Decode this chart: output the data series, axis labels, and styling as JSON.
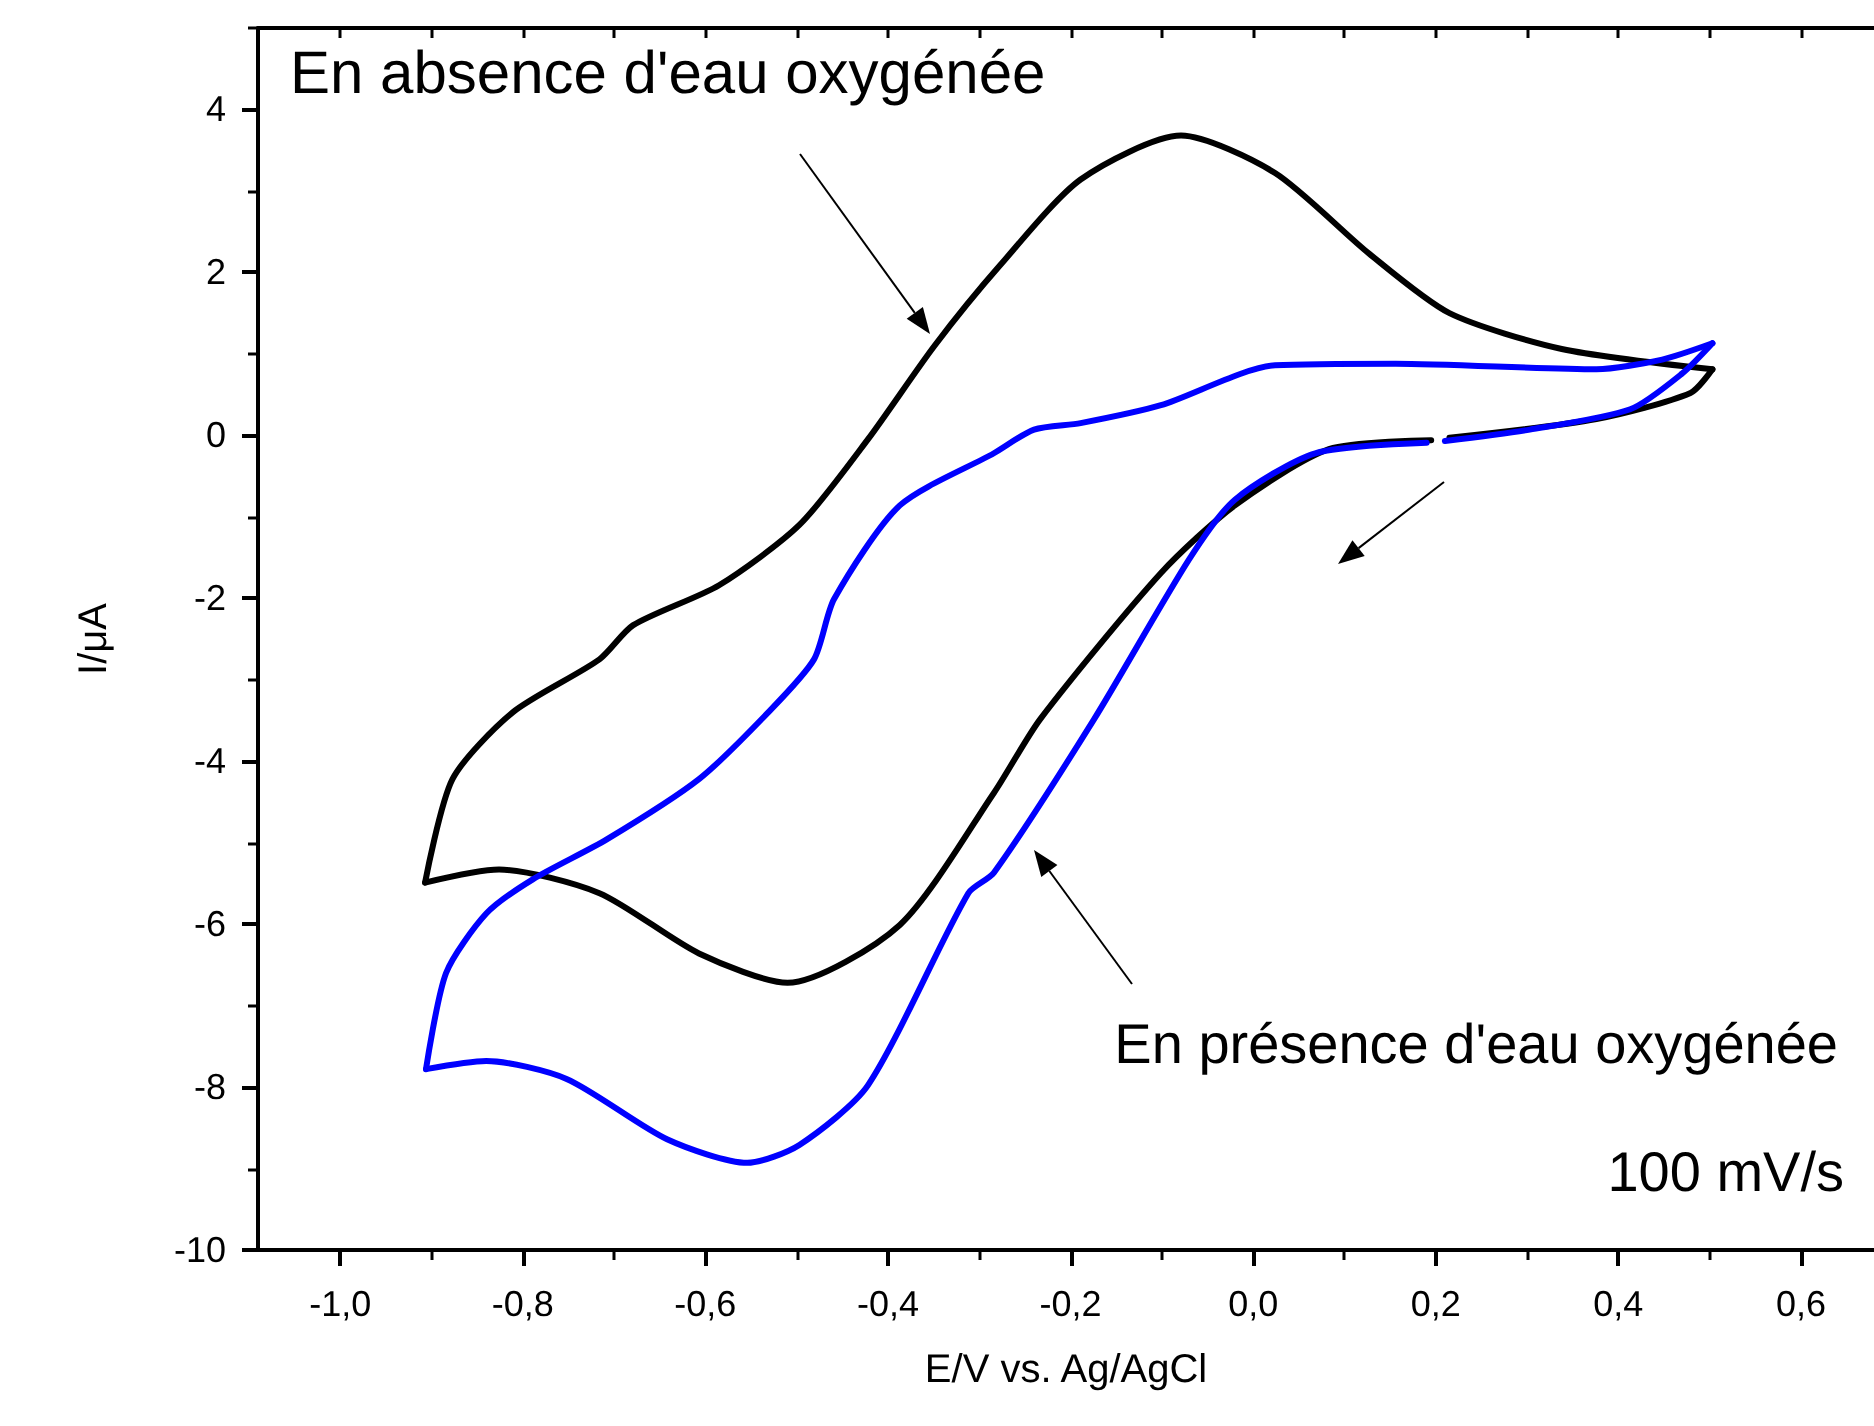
{
  "chart_data": {
    "type": "line",
    "xlabel": "E/V vs. Ag/AgCl",
    "ylabel": "I/μA",
    "xlim": [
      -1.09,
      0.68
    ],
    "ylim": [
      -10,
      5
    ],
    "xticks": [
      {
        "value": -1,
        "label": "-1,0"
      },
      {
        "value": -0.8,
        "label": "-0,8"
      },
      {
        "value": -0.6,
        "label": "-0,6"
      },
      {
        "value": -0.4,
        "label": "-0,4"
      },
      {
        "value": -0.2,
        "label": "-0,2"
      },
      {
        "value": 0,
        "label": "0,0"
      },
      {
        "value": 0.2,
        "label": "0,2"
      },
      {
        "value": 0.4,
        "label": "0,4"
      },
      {
        "value": 0.6,
        "label": "0,6"
      }
    ],
    "yticks": [
      -10,
      -8,
      -6,
      -4,
      -2,
      0,
      2,
      4
    ],
    "grid": false,
    "annotations": [
      "En absence d'eau oxygénée",
      "En présence d'eau oxygénée",
      "100 mV/s"
    ],
    "series": [
      {
        "color": "#000000",
        "x": [
          -0.907,
          -0.877,
          -0.811,
          -0.716,
          -0.679,
          -0.585,
          -0.497,
          -0.422,
          -0.349,
          -0.277,
          -0.189,
          -0.079,
          0.024,
          0.127,
          0.215,
          0.338,
          0.503
        ],
        "values": [
          -5.49,
          -4.22,
          -3.4,
          -2.75,
          -2.33,
          -1.84,
          -1.1,
          -0.05,
          1.1,
          2.09,
          3.14,
          3.68,
          3.22,
          2.23,
          1.5,
          1.06,
          0.81
        ]
      },
      {
        "color": "#000000",
        "x": [
          0.503,
          0.479,
          0.376,
          0.215
        ],
        "values": [
          0.81,
          0.52,
          0.2,
          -0.03
        ]
      },
      {
        "color": "#000000",
        "x": [
          0.195,
          0.083,
          -0.02,
          -0.101,
          -0.233,
          -0.284,
          -0.387,
          -0.51,
          -0.607,
          -0.716,
          -0.826,
          -0.907
        ],
        "values": [
          -0.06,
          -0.17,
          -0.86,
          -1.69,
          -3.48,
          -4.39,
          -6.01,
          -6.72,
          -6.36,
          -5.62,
          -5.33,
          -5.49
        ]
      },
      {
        "color": "#0000ff",
        "x": [
          -0.906,
          -0.884,
          -0.84,
          -0.789,
          -0.708,
          -0.607,
          -0.532,
          -0.481,
          -0.459,
          -0.387,
          -0.284,
          -0.24,
          -0.189,
          -0.101,
          0.024,
          0.156,
          0.376,
          0.448,
          0.503
        ],
        "values": [
          -7.78,
          -6.6,
          -5.87,
          -5.45,
          -4.96,
          -4.22,
          -3.41,
          -2.75,
          -2.01,
          -0.86,
          -0.22,
          0.07,
          0.15,
          0.37,
          0.86,
          0.88,
          0.81,
          0.93,
          1.13
        ]
      },
      {
        "color": "#0000ff",
        "x": [
          0.503,
          0.47,
          0.413,
          0.303,
          0.21
        ],
        "values": [
          1.13,
          0.76,
          0.32,
          0.07,
          -0.07
        ]
      },
      {
        "color": "#0000ff",
        "x": [
          0.19,
          0.068,
          -0.02,
          -0.07,
          -0.174,
          -0.284,
          -0.312,
          -0.422,
          -0.497,
          -0.554,
          -0.642,
          -0.752,
          -0.84,
          -0.906
        ],
        "values": [
          -0.09,
          -0.22,
          -0.79,
          -1.52,
          -3.48,
          -5.37,
          -5.62,
          -7.98,
          -8.71,
          -8.93,
          -8.64,
          -7.9,
          -7.68,
          -7.78
        ]
      }
    ]
  }
}
